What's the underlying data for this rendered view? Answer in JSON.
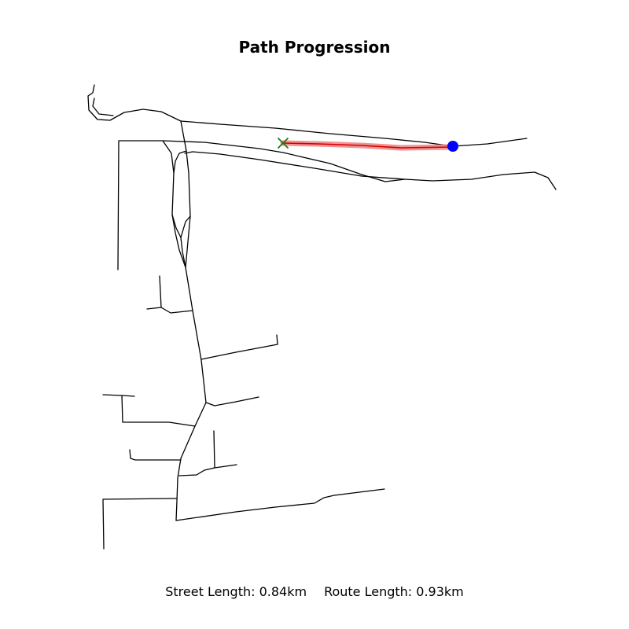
{
  "title": "Path Progression",
  "stats": {
    "street_length": "Street Length: 0.84km",
    "route_length": "Route Length: 0.93km"
  },
  "colors": {
    "streets": "#000000",
    "route": "#d40000",
    "route_glow": "#f08080",
    "start_marker": "#0000ff",
    "end_marker": "#1a7a1a"
  },
  "markers": {
    "start": "blue-circle",
    "end": "green-x"
  }
}
